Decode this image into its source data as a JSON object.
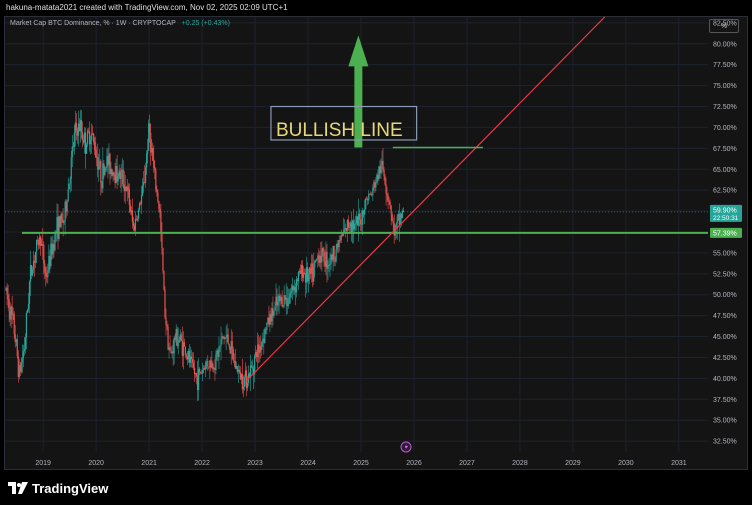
{
  "header": {
    "caption": "hakuna-matata2021 created with TradingView.com, Nov 02, 2025 02:09 UTC+1"
  },
  "legend": {
    "symbol": "Market Cap BTC Dominance, % · 1W · CRYPTOCAP",
    "change": "+0.25 (+0.43%)"
  },
  "axis_unit": "%",
  "annotation": {
    "box_text": "BULLISH LINE"
  },
  "price_labels": {
    "last": "59.90%",
    "countdown": "22:50:31",
    "level": "57.39%"
  },
  "footer": {
    "brand": "TradingView"
  },
  "colors": {
    "up": "#26a69a",
    "down": "#ef5350",
    "support": "#4caf50",
    "trendline": "#f23645",
    "arrow": "#4caf50",
    "box_text": "#e8d87c"
  },
  "chart_data": {
    "type": "candlestick",
    "title": "Market Cap BTC Dominance, % · 1W · CRYPTOCAP",
    "xlabel": "",
    "ylabel": "",
    "x_ticks": [
      "2019",
      "2020",
      "2021",
      "2022",
      "2023",
      "2024",
      "2025",
      "2026",
      "2027",
      "2028",
      "2029",
      "2030",
      "2031"
    ],
    "y_ticks": [
      "32.50%",
      "35.00%",
      "37.50%",
      "40.00%",
      "42.50%",
      "45.00%",
      "47.50%",
      "50.00%",
      "52.50%",
      "55.00%",
      "57.50%",
      "60.00%",
      "62.50%",
      "65.00%",
      "67.50%",
      "70.00%",
      "72.50%",
      "75.00%",
      "77.50%",
      "80.00%",
      "82.50%"
    ],
    "ylim": [
      31.2,
      83.2
    ],
    "xlim": [
      2018.28,
      2031.55
    ],
    "last_value": 59.9,
    "support_level": 57.39,
    "path_points": [
      [
        2018.3,
        50.5
      ],
      [
        2018.45,
        46
      ],
      [
        2018.55,
        40.5
      ],
      [
        2018.65,
        44
      ],
      [
        2018.75,
        52
      ],
      [
        2018.85,
        55
      ],
      [
        2018.95,
        57
      ],
      [
        2019.05,
        52
      ],
      [
        2019.15,
        55
      ],
      [
        2019.25,
        58
      ],
      [
        2019.4,
        59
      ],
      [
        2019.5,
        64
      ],
      [
        2019.6,
        69.5
      ],
      [
        2019.7,
        70
      ],
      [
        2019.8,
        68
      ],
      [
        2019.9,
        69.5
      ],
      [
        2020.0,
        67
      ],
      [
        2020.1,
        64
      ],
      [
        2020.2,
        66
      ],
      [
        2020.3,
        65
      ],
      [
        2020.4,
        64.5
      ],
      [
        2020.5,
        64
      ],
      [
        2020.6,
        62
      ],
      [
        2020.7,
        58
      ],
      [
        2020.8,
        60
      ],
      [
        2020.9,
        63
      ],
      [
        2021.0,
        70
      ],
      [
        2021.1,
        64
      ],
      [
        2021.2,
        60
      ],
      [
        2021.3,
        48
      ],
      [
        2021.4,
        42.5
      ],
      [
        2021.5,
        45
      ],
      [
        2021.6,
        44.5
      ],
      [
        2021.7,
        43
      ],
      [
        2021.8,
        41.5
      ],
      [
        2021.9,
        40
      ],
      [
        2022.0,
        41
      ],
      [
        2022.1,
        42
      ],
      [
        2022.2,
        41.5
      ],
      [
        2022.3,
        43
      ],
      [
        2022.4,
        45
      ],
      [
        2022.5,
        44.5
      ],
      [
        2022.6,
        42
      ],
      [
        2022.7,
        40.5
      ],
      [
        2022.8,
        40
      ],
      [
        2022.9,
        40.5
      ],
      [
        2023.0,
        42.5
      ],
      [
        2023.1,
        44
      ],
      [
        2023.2,
        46
      ],
      [
        2023.3,
        47.5
      ],
      [
        2023.4,
        48.5
      ],
      [
        2023.5,
        49.5
      ],
      [
        2023.6,
        49.5
      ],
      [
        2023.7,
        50.5
      ],
      [
        2023.8,
        52
      ],
      [
        2023.9,
        53
      ],
      [
        2024.0,
        52
      ],
      [
        2024.1,
        52.5
      ],
      [
        2024.2,
        55
      ],
      [
        2024.3,
        54.5
      ],
      [
        2024.4,
        54
      ],
      [
        2024.5,
        55
      ],
      [
        2024.6,
        56.5
      ],
      [
        2024.7,
        57.5
      ],
      [
        2024.8,
        59
      ],
      [
        2024.9,
        58
      ],
      [
        2025.0,
        59
      ],
      [
        2025.1,
        61.5
      ],
      [
        2025.2,
        62
      ],
      [
        2025.3,
        64
      ],
      [
        2025.4,
        65.5
      ],
      [
        2025.45,
        64
      ],
      [
        2025.5,
        62
      ],
      [
        2025.55,
        61
      ],
      [
        2025.6,
        58
      ],
      [
        2025.65,
        57.5
      ],
      [
        2025.7,
        58.5
      ],
      [
        2025.75,
        59.5
      ],
      [
        2025.8,
        59.9
      ]
    ],
    "lines": [
      {
        "name": "",
        "type": "horizontal",
        "y": 57.39,
        "x_start": 2018.6,
        "color": "#4caf50"
      },
      {
        "name": "",
        "type": "trend",
        "x": [
          2022.85,
          2027.3
        ],
        "y": [
          39.8,
          67.6
        ],
        "extends_to": [
          2029.6,
          83.2
        ],
        "color": "#f23645"
      },
      {
        "name": "",
        "type": "segment",
        "x": [
          2025.6,
          2027.3
        ],
        "y": [
          67.6,
          67.6
        ],
        "color": "#4caf50"
      }
    ],
    "grid": true,
    "legend_position": "top-left"
  }
}
